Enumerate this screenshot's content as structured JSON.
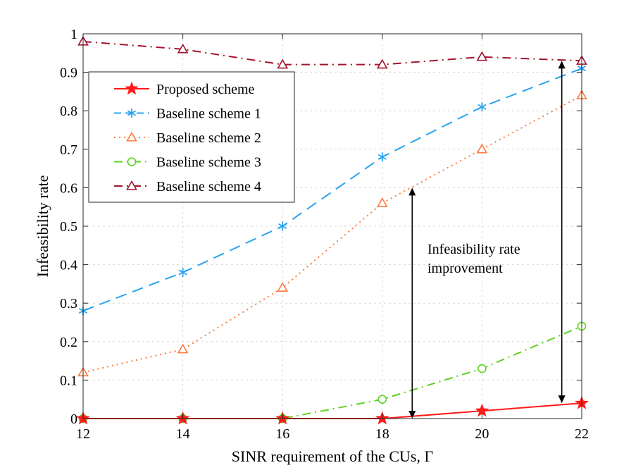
{
  "chart_data": {
    "type": "line",
    "title": "",
    "xlabel": "SINR requirement of the CUs, Γ",
    "ylabel": "Infeasibility rate",
    "xlim": [
      12,
      22
    ],
    "ylim": [
      0,
      1
    ],
    "xticks": [
      12,
      14,
      16,
      18,
      20,
      22
    ],
    "yticks": [
      0,
      0.1,
      0.2,
      0.3,
      0.4,
      0.5,
      0.6,
      0.7,
      0.8,
      0.9,
      1
    ],
    "ytick_labels": [
      "0",
      "0.1",
      "0.2",
      "0.3",
      "0.4",
      "0.5",
      "0.6",
      "0.7",
      "0.8",
      "0.9",
      "1"
    ],
    "grid": true,
    "legend_position": "top-left",
    "x": [
      12,
      14,
      16,
      18,
      20,
      22
    ],
    "series": [
      {
        "name": "Proposed scheme",
        "color": "#ff1a1a",
        "marker": "star",
        "dash": "solid",
        "values": [
          0,
          0,
          0,
          0,
          0.02,
          0.04
        ]
      },
      {
        "name": "Baseline scheme 1",
        "color": "#29a3f0",
        "marker": "asterisk",
        "dash": "dashed",
        "values": [
          0.28,
          0.38,
          0.5,
          0.68,
          0.81,
          0.91
        ]
      },
      {
        "name": "Baseline scheme 2",
        "color": "#ff7a3d",
        "marker": "triangle",
        "dash": "dotted",
        "values": [
          0.12,
          0.18,
          0.34,
          0.56,
          0.7,
          0.84
        ]
      },
      {
        "name": "Baseline scheme 3",
        "color": "#5ed11f",
        "marker": "circle",
        "dash": "dashdot",
        "values": [
          0,
          0,
          0,
          0.05,
          0.13,
          0.24
        ]
      },
      {
        "name": "Baseline scheme 4",
        "color": "#a3142e",
        "marker": "triangle",
        "dash": "dashdot",
        "values": [
          0.98,
          0.96,
          0.92,
          0.92,
          0.94,
          0.93
        ]
      }
    ],
    "annotations": [
      {
        "text_lines": [
          "Infeasibility rate",
          "improvement"
        ]
      },
      {
        "arrow": "double",
        "x": 18.6,
        "y_from": 0,
        "y_to": 0.6
      },
      {
        "arrow": "double",
        "x": 21.6,
        "y_from": 0.04,
        "y_to": 0.93
      }
    ]
  }
}
